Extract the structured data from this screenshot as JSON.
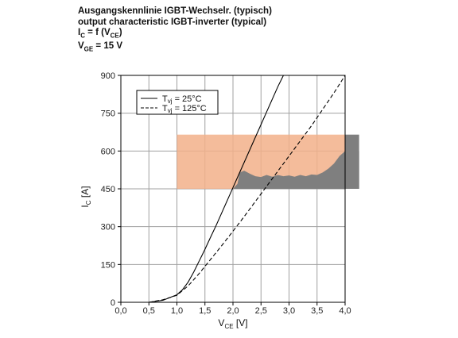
{
  "header": {
    "line1": "Ausgangskennlinie IGBT-Wechselr. (typisch)",
    "line2": "output characteristic IGBT-inverter (typical)",
    "line3": "I C = f (V CE)",
    "line3_parts": {
      "main": "I",
      "sub": "C",
      "eq": " = f (V",
      "sub2": "CE",
      "close": ")"
    },
    "line4_parts": {
      "main": "V",
      "sub": "GE",
      "rest": " = 15 V"
    }
  },
  "chart_data": {
    "type": "line",
    "xlabel": {
      "main": "V",
      "sub": "CE",
      "unit": " [V]"
    },
    "ylabel": {
      "main": "I",
      "sub": "C",
      "unit": " [A]"
    },
    "xlim": [
      0,
      4
    ],
    "ylim": [
      0,
      900
    ],
    "x_ticks": [
      0,
      0.5,
      1.0,
      1.5,
      2.0,
      2.5,
      3.0,
      3.5,
      4.0
    ],
    "x_tick_labels": [
      "0,0",
      "0,5",
      "1,0",
      "1,5",
      "2,0",
      "2,5",
      "3,0",
      "3,5",
      "4,0"
    ],
    "y_ticks": [
      0,
      150,
      300,
      450,
      600,
      750,
      900
    ],
    "y_tick_labels": [
      "0",
      "150",
      "300",
      "450",
      "600",
      "750",
      "900"
    ],
    "grid": true,
    "legend": {
      "placement": "top-left"
    },
    "series": [
      {
        "name_main": "T",
        "name_sub": "vj",
        "name_rest": " = 25°C",
        "style": "solid",
        "color": "#000000",
        "points": [
          [
            0.5,
            0
          ],
          [
            0.75,
            8
          ],
          [
            1.0,
            30
          ],
          [
            1.1,
            50
          ],
          [
            1.2,
            80
          ],
          [
            1.3,
            120
          ],
          [
            1.4,
            165
          ],
          [
            1.5,
            210
          ],
          [
            1.6,
            258
          ],
          [
            1.7,
            305
          ],
          [
            1.8,
            355
          ],
          [
            1.9,
            405
          ],
          [
            2.0,
            455
          ],
          [
            2.1,
            505
          ],
          [
            2.2,
            555
          ],
          [
            2.3,
            605
          ],
          [
            2.4,
            655
          ],
          [
            2.5,
            705
          ],
          [
            2.6,
            755
          ],
          [
            2.7,
            805
          ],
          [
            2.8,
            855
          ],
          [
            2.9,
            900
          ]
        ]
      },
      {
        "name_main": "T",
        "name_sub": "vj",
        "name_rest": " = 125°C",
        "style": "dashed",
        "color": "#000000",
        "points": [
          [
            0.5,
            0
          ],
          [
            0.75,
            10
          ],
          [
            1.0,
            28
          ],
          [
            1.2,
            65
          ],
          [
            1.4,
            115
          ],
          [
            1.6,
            170
          ],
          [
            1.8,
            225
          ],
          [
            2.0,
            282
          ],
          [
            2.2,
            340
          ],
          [
            2.4,
            400
          ],
          [
            2.6,
            460
          ],
          [
            2.8,
            520
          ],
          [
            3.0,
            580
          ],
          [
            3.2,
            640
          ],
          [
            3.4,
            700
          ],
          [
            3.6,
            765
          ],
          [
            3.8,
            830
          ],
          [
            4.0,
            900
          ]
        ]
      }
    ],
    "overlays": {
      "orange_band": {
        "x": [
          1.0,
          4.0
        ],
        "y": [
          450,
          665
        ],
        "color": "#f2b08a",
        "opacity": 0.85
      },
      "gray_region": {
        "color": "#7f7f7f",
        "x_extent": 4.25,
        "y_range": [
          450,
          665
        ],
        "profile": [
          [
            2.0,
            450
          ],
          [
            2.08,
            470
          ],
          [
            2.12,
            515
          ],
          [
            2.2,
            522
          ],
          [
            2.3,
            510
          ],
          [
            2.4,
            500
          ],
          [
            2.5,
            497
          ],
          [
            2.6,
            505
          ],
          [
            2.7,
            498
          ],
          [
            2.8,
            505
          ],
          [
            2.9,
            500
          ],
          [
            3.0,
            503
          ],
          [
            3.1,
            498
          ],
          [
            3.2,
            505
          ],
          [
            3.3,
            500
          ],
          [
            3.4,
            507
          ],
          [
            3.5,
            505
          ],
          [
            3.6,
            515
          ],
          [
            3.7,
            530
          ],
          [
            3.8,
            550
          ],
          [
            3.9,
            580
          ],
          [
            4.0,
            600
          ]
        ]
      }
    },
    "colors": {
      "axis": "#000000",
      "grid": "#a0a0a0",
      "background": "#ffffff"
    }
  }
}
